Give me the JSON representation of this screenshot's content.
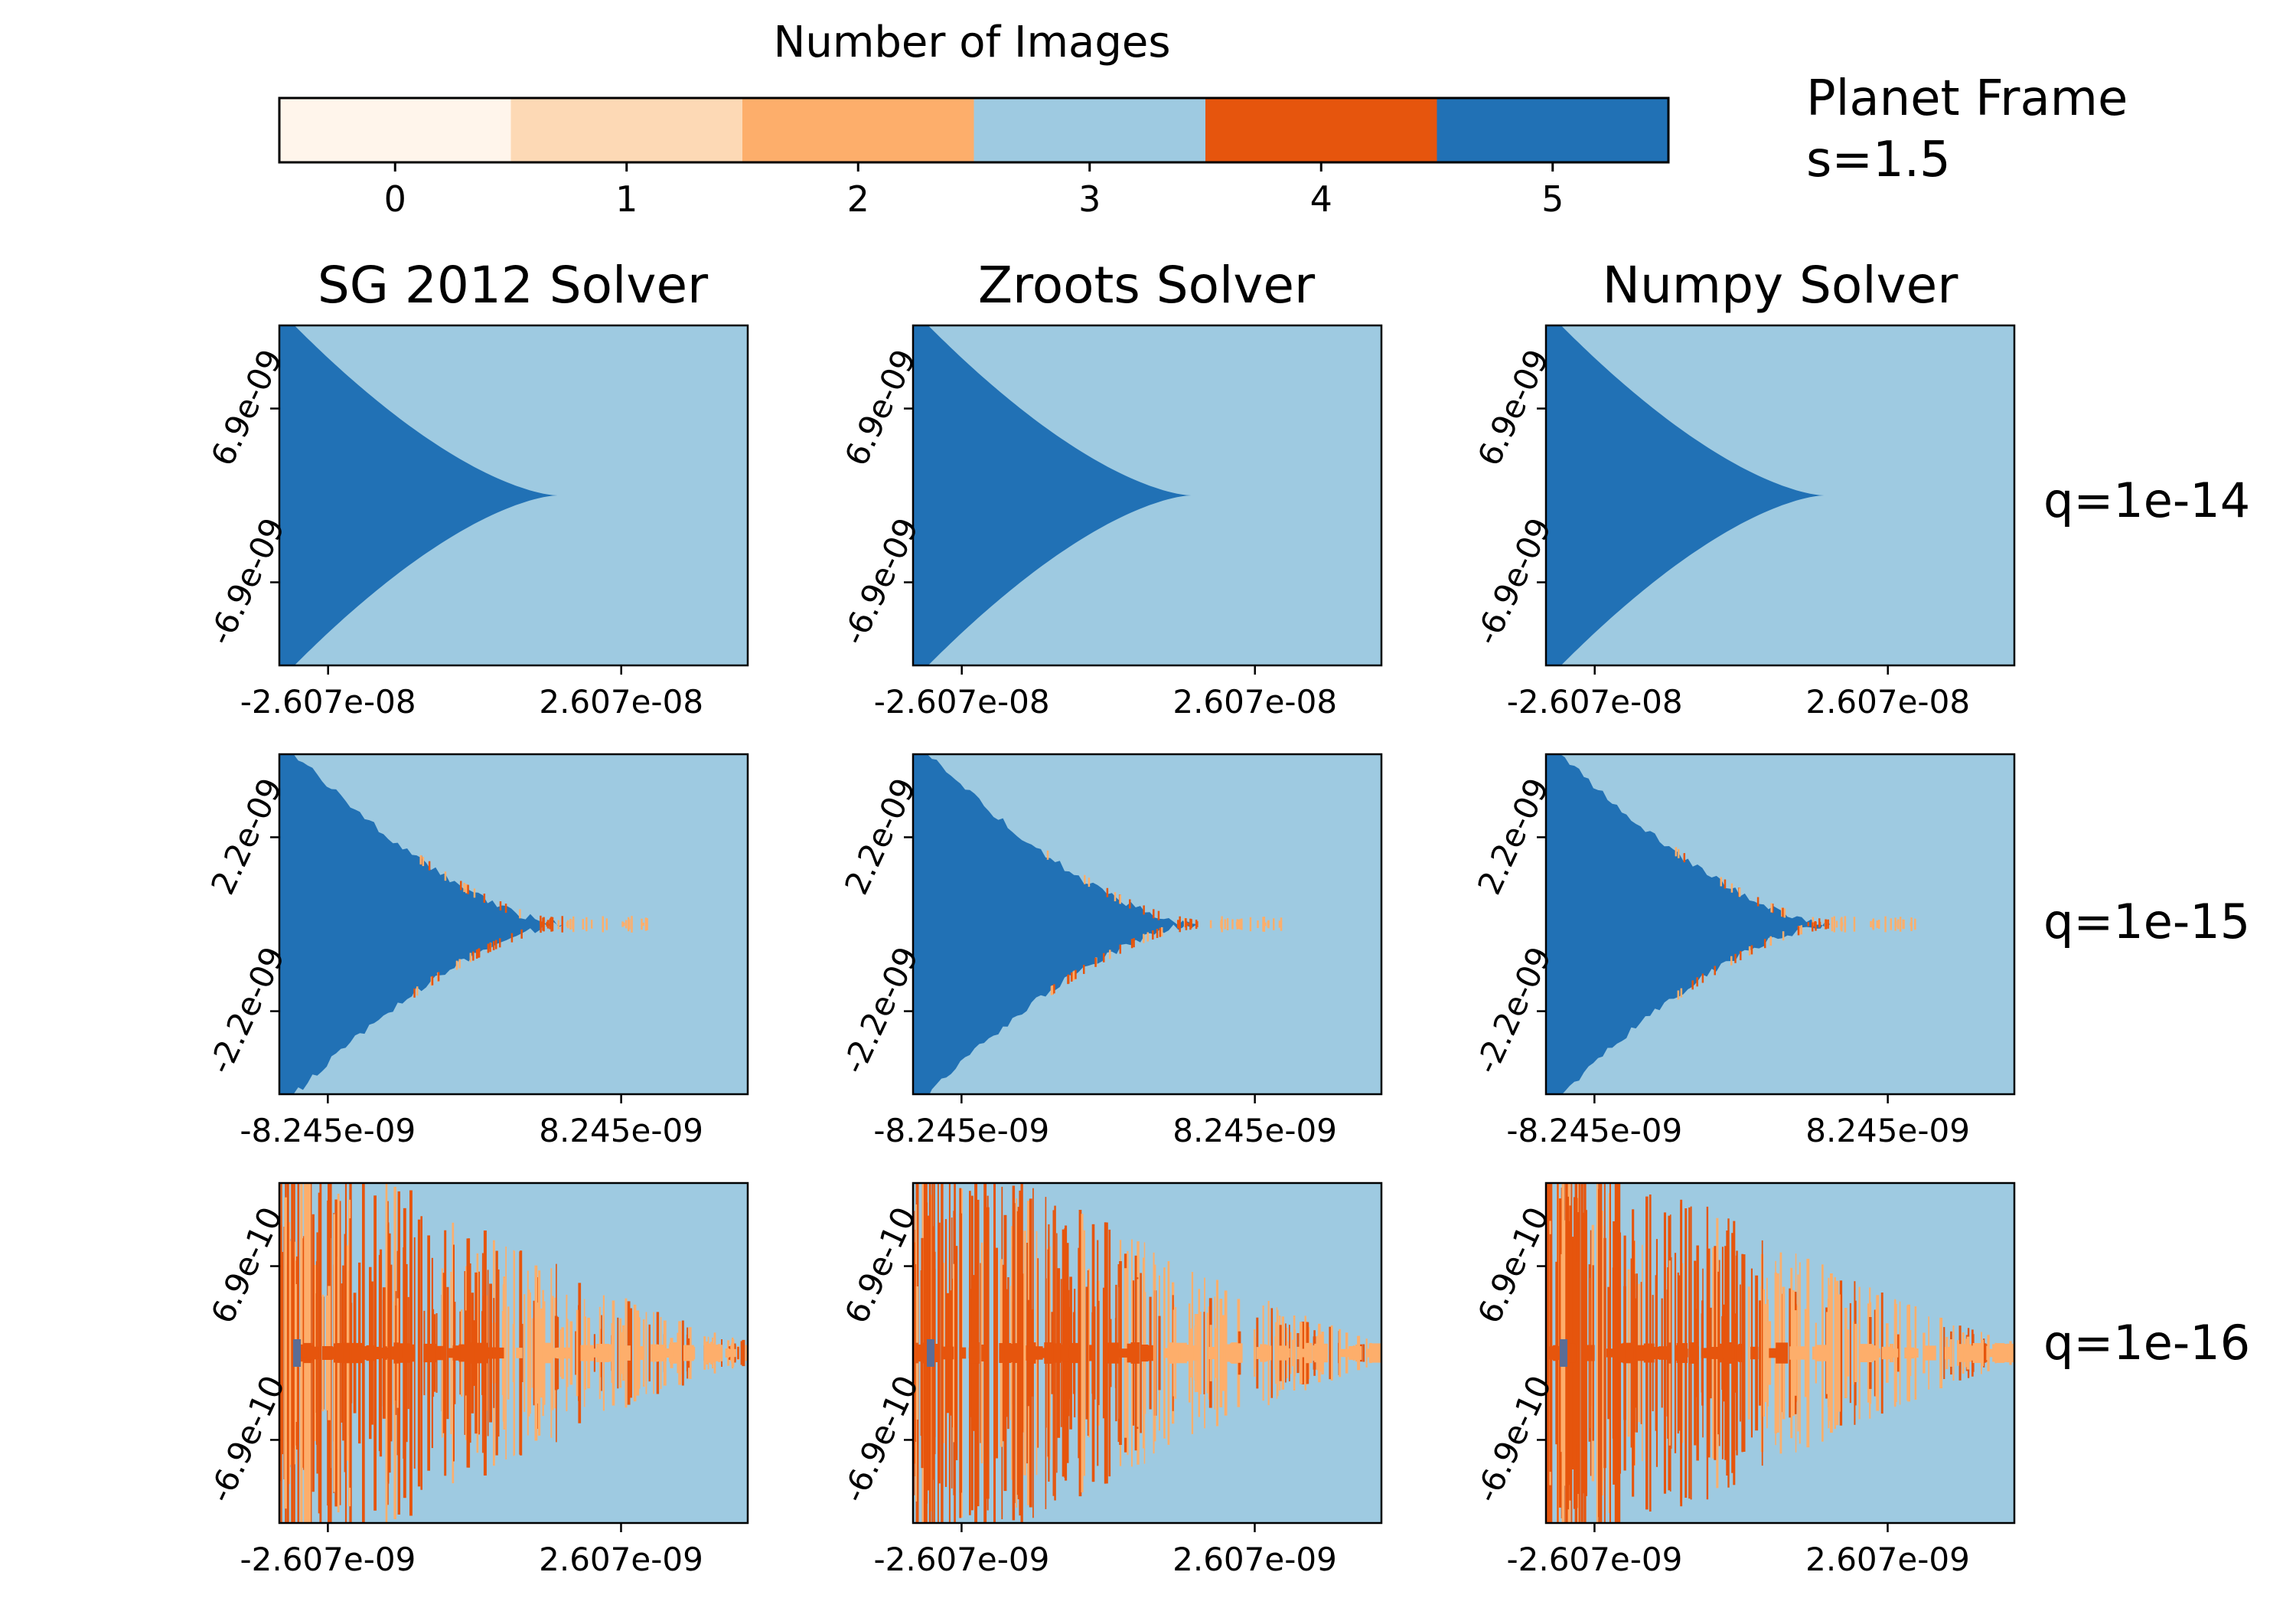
{
  "figure": {
    "side_title_line1": "Planet Frame",
    "side_title_line2": "s=1.5"
  },
  "colorbar": {
    "title": "Number of Images",
    "ticks": [
      "0",
      "1",
      "2",
      "3",
      "4",
      "5"
    ],
    "colors": [
      "#fff5eb",
      "#fdd9b5",
      "#fdae6b",
      "#9ecae1",
      "#e6550d",
      "#2171b5"
    ]
  },
  "chart_data": {
    "type": "heatmap",
    "description_levels": "Number of images per pixel: 0..5",
    "columns": [
      "SG 2012 Solver",
      "Zroots Solver",
      "Numpy Solver"
    ],
    "rows": [
      {
        "label": "q=1e-14",
        "xticks": [
          "-2.607e-08",
          "2.607e-08"
        ],
        "xtick_values": [
          -2.607e-08,
          2.607e-08
        ],
        "yticks": [
          "6.9e-09",
          "-6.9e-09"
        ],
        "ytick_values": [
          6.9e-09,
          -6.9e-09
        ],
        "x_range": [
          -3.474e-08,
          4.857e-08
        ],
        "y_range": [
          -1.35e-08,
          1.35e-08
        ],
        "background_level": 3,
        "region_level": 5,
        "cusp_tip_x": 1.47e-08,
        "noise": "low"
      },
      {
        "label": "q=1e-15",
        "xticks": [
          "-8.245e-09",
          "8.245e-09"
        ],
        "xtick_values": [
          -8.245e-09,
          8.245e-09
        ],
        "yticks": [
          "2.2e-09",
          "-2.2e-09"
        ],
        "ytick_values": [
          2.2e-09,
          -2.2e-09
        ],
        "x_range": [
          -1.097e-08,
          1.536e-08
        ],
        "y_range": [
          -4.3e-09,
          4.3e-09
        ],
        "background_level": 3,
        "region_level": 5,
        "cusp_tip_x": 5e-09,
        "noise": "medium"
      },
      {
        "label": "q=1e-16",
        "xticks": [
          "-2.607e-09",
          "2.607e-09"
        ],
        "xtick_values": [
          -2.607e-09,
          2.607e-09
        ],
        "yticks": [
          "6.9e-10",
          "-6.9e-10"
        ],
        "ytick_values": [
          6.9e-10,
          -6.9e-10
        ],
        "x_range": [
          -3.47e-09,
          4.86e-09
        ],
        "y_range": [
          -1.35e-09,
          1.35e-09
        ],
        "background_level": 3,
        "region_level": 4,
        "cusp_tip_x": 4.86e-09,
        "noise": "high"
      }
    ]
  }
}
